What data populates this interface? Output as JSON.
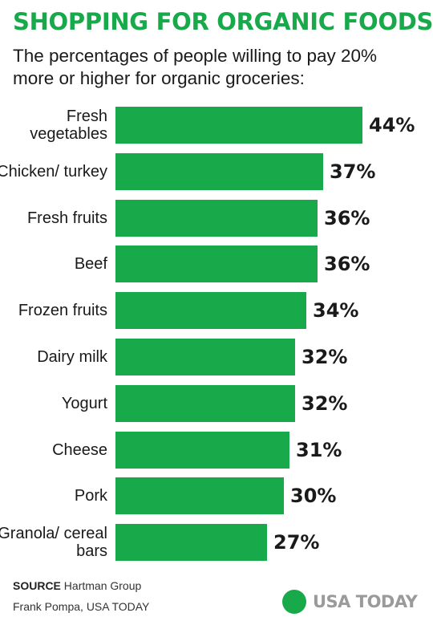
{
  "title": "SHOPPING FOR ORGANIC FOODS",
  "subtitle": "The percentages of people willing to pay 20% more or higher for organic groceries:",
  "source": {
    "label": "SOURCE",
    "text": "Hartman Group"
  },
  "credit": "Frank Pompa, USA TODAY",
  "logo": "USA TODAY",
  "colors": {
    "bar": "#18a94a",
    "title": "#18a94a",
    "logo_dot": "#18a94a"
  },
  "chart_data": {
    "type": "bar",
    "orientation": "horizontal",
    "categories": [
      "Fresh vegetables",
      "Chicken/ turkey",
      "Fresh fruits",
      "Beef",
      "Frozen fruits",
      "Dairy milk",
      "Yogurt",
      "Cheese",
      "Pork",
      "Granola/ cereal bars"
    ],
    "values": [
      44,
      37,
      36,
      36,
      34,
      32,
      32,
      31,
      30,
      27
    ],
    "value_labels": [
      "44%",
      "37%",
      "36%",
      "36%",
      "34%",
      "32%",
      "32%",
      "31%",
      "30%",
      "27%"
    ],
    "title": "SHOPPING FOR ORGANIC FOODS",
    "xlim": [
      0,
      44
    ],
    "grid": false,
    "unit": "%"
  }
}
